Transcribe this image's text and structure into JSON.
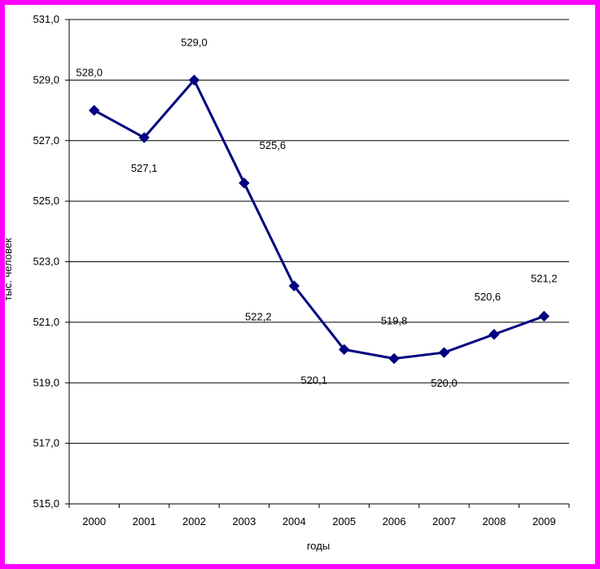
{
  "chart_data": {
    "type": "line",
    "categories": [
      "2000",
      "2001",
      "2002",
      "2003",
      "2004",
      "2005",
      "2006",
      "2007",
      "2008",
      "2009"
    ],
    "values": [
      528.0,
      527.1,
      529.0,
      525.6,
      522.2,
      520.1,
      519.8,
      520.0,
      520.6,
      521.2
    ],
    "data_labels": [
      "528,0",
      "527,1",
      "529,0",
      "525,6",
      "522,2",
      "520,1",
      "519,8",
      "520,0",
      "520,6",
      "521,2"
    ],
    "y_ticks": [
      515,
      517,
      519,
      521,
      523,
      525,
      527,
      529,
      531
    ],
    "y_tick_labels": [
      "515,0",
      "517,0",
      "519,0",
      "521,0",
      "523,0",
      "525,0",
      "527,0",
      "529,0",
      "531,0"
    ],
    "ylim": [
      515,
      531
    ],
    "xlabel": "годы",
    "ylabel": "тыс. человек",
    "grid": true,
    "legend": false,
    "colors": {
      "series": "#000080",
      "frame": "#ff00ff",
      "grid": "#000000"
    },
    "marker": "diamond"
  }
}
